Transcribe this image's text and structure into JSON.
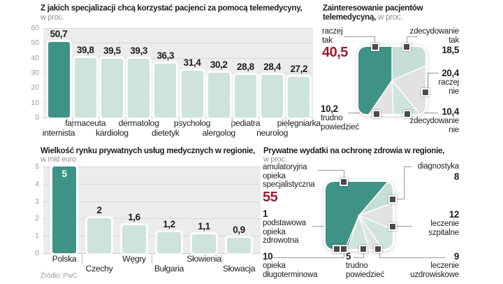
{
  "colors": {
    "teal_dark": "#3f9386",
    "bar_pale": "#cee3da",
    "teal_light": "#c7ded5",
    "teal_pale": "#cfe5db",
    "slice_gray": "#e2e2e3",
    "plot_bg": "#ececec",
    "grid": "#d9d9d9",
    "red_value": "#9e1c33",
    "text": "#1d1d1b",
    "muted": "#8f8f8f",
    "marker": "#4a4a4a",
    "connector": "#9a9a9a"
  },
  "source": "Źródło: PwC",
  "chart_data": [
    {
      "id": "specializations",
      "type": "bar",
      "title": "Z jakich specjalizacji chcą korzystać pacjenci za pomocą telemedycyny,",
      "subtitle": "w proc.",
      "categories": [
        "internista",
        "farmaceuta",
        "kardiolog",
        "dermatolog",
        "dietetyk",
        "psycholog",
        "alergolog",
        "pediatra",
        "neurolog",
        "pielęgniarka"
      ],
      "values": [
        50.7,
        39.8,
        39.5,
        39.3,
        36.3,
        31.4,
        30.2,
        28.8,
        28.4,
        27.2
      ],
      "value_labels": [
        "50,7",
        "39,8",
        "39,5",
        "39,3",
        "36,3",
        "31,4",
        "30,2",
        "28,8",
        "28,4",
        "27,2"
      ],
      "ylim": [
        0,
        60
      ],
      "yticks": [
        60,
        50,
        40,
        30,
        20,
        10,
        0
      ],
      "highlight_index": 0,
      "grid": true,
      "legend": "none"
    },
    {
      "id": "interest",
      "type": "pie",
      "title_lines": [
        "Zainteresowanie pacjentów",
        "telemedycyną,"
      ],
      "subtitle": "w proc.",
      "start_angle": 0,
      "slices": [
        {
          "label": "zdecydowanie tak",
          "label_lines": [
            "zdecydowanie",
            "tak"
          ],
          "value": 18.5,
          "value_label": "18,5",
          "color_key": "teal_light"
        },
        {
          "label": "raczej nie",
          "label_lines": [
            "raczej",
            "nie"
          ],
          "value": 20.4,
          "value_label": "20,4",
          "color_key": "slice_gray"
        },
        {
          "label": "zdecydowanie nie",
          "label_lines": [
            "zdecydowanie",
            "nie"
          ],
          "value": 10.4,
          "value_label": "10,4",
          "color_key": "teal_pale"
        },
        {
          "label": "trudno powiedzieć",
          "label_lines": [
            "trudno",
            "powiedzieć"
          ],
          "value": 10.2,
          "value_label": "10,2",
          "color_key": "slice_gray"
        },
        {
          "label": "raczej tak",
          "label_lines": [
            "raczej",
            "tak"
          ],
          "value": 40.5,
          "value_label": "40,5",
          "color_key": "teal_dark",
          "emphasis": true
        }
      ]
    },
    {
      "id": "market",
      "type": "bar",
      "title": "Wielkość rynku prywatnych usług medycznych  w regionie,",
      "subtitle": "w mld euro",
      "categories": [
        "Polska",
        "Czechy",
        "Węgry",
        "Bułgaria",
        "Słowienia",
        "Słowacja"
      ],
      "values": [
        5,
        2,
        1.6,
        1.2,
        1.1,
        0.9
      ],
      "value_labels": [
        "5",
        "2",
        "1,6",
        "1,2",
        "1,1",
        "0,9"
      ],
      "ylim": [
        0,
        5
      ],
      "yticks": [
        5,
        4,
        3,
        2,
        1,
        0
      ],
      "highlight_index": 0,
      "value_inside_highlight": true,
      "grid": true,
      "legend": "none"
    },
    {
      "id": "spending",
      "type": "pie",
      "title": "Prywatne wydatki na ochronę zdrowia w regionie,",
      "subtitle": "w proc.",
      "start_angle": 202.6,
      "slices": [
        {
          "label": "amulatoryjna opieka specjalistyczna",
          "label_lines": [
            "amulatoryjna",
            "opieka",
            "specjalistyczna"
          ],
          "value": 55,
          "value_label": "55",
          "color_key": "teal_dark",
          "emphasis": true
        },
        {
          "label": "diagnostyka",
          "label_lines": [
            "diagnostyka"
          ],
          "value": 8,
          "value_label": "8",
          "color_key": "teal_light"
        },
        {
          "label": "leczenie szpitalne",
          "label_lines": [
            "leczenie",
            "szpitalne"
          ],
          "value": 12,
          "value_label": "12",
          "color_key": "slice_gray"
        },
        {
          "label": "leczenie uzdrowiskowe",
          "label_lines": [
            "leczenie",
            "uzdrowiskowe"
          ],
          "value": 9,
          "value_label": "9",
          "color_key": "teal_pale"
        },
        {
          "label": "trudno powiedzieć",
          "label_lines": [
            "trudno",
            "powiedzieć"
          ],
          "value": 5,
          "value_label": "5",
          "color_key": "slice_gray"
        },
        {
          "label": "opieka długoterminowa",
          "label_lines": [
            "opieka",
            "długoterminowa"
          ],
          "value": 10,
          "value_label": "10",
          "color_key": "teal_pale"
        },
        {
          "label": "podstawowa opieka zdrowotna",
          "label_lines": [
            "podstawowa",
            "opieka",
            "zdrowotna"
          ],
          "value": 1,
          "value_label": "1",
          "color_key": "teal_dark"
        }
      ]
    }
  ]
}
